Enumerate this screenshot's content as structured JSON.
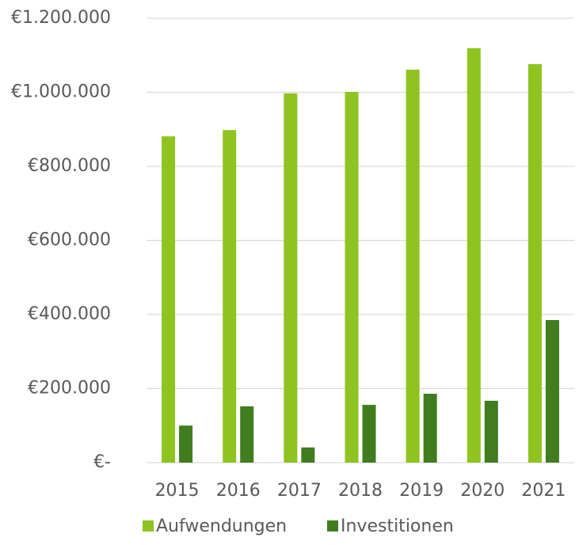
{
  "chart_data": {
    "type": "bar",
    "categories": [
      "2015",
      "2016",
      "2017",
      "2018",
      "2019",
      "2020",
      "2021"
    ],
    "series": [
      {
        "name": "Aufwendungen",
        "color": "#8fc31f",
        "values": [
          881000,
          898000,
          997000,
          1001000,
          1061000,
          1119000,
          1076000
        ]
      },
      {
        "name": "Investitionen",
        "color": "#3f7d1f",
        "values": [
          100000,
          152000,
          41000,
          156000,
          186000,
          167000,
          385000
        ]
      }
    ],
    "ylim": [
      0,
      1200000
    ],
    "yticks": [
      {
        "value": 0,
        "label": "€-"
      },
      {
        "value": 200000,
        "label": "€200.000"
      },
      {
        "value": 400000,
        "label": "€400.000"
      },
      {
        "value": 600000,
        "label": "€600.000"
      },
      {
        "value": 800000,
        "label": "€800.000"
      },
      {
        "value": 1000000,
        "label": "€1.000.000"
      },
      {
        "value": 1200000,
        "label": "€1.200.000"
      }
    ],
    "grid": true,
    "legend": "bottom"
  }
}
